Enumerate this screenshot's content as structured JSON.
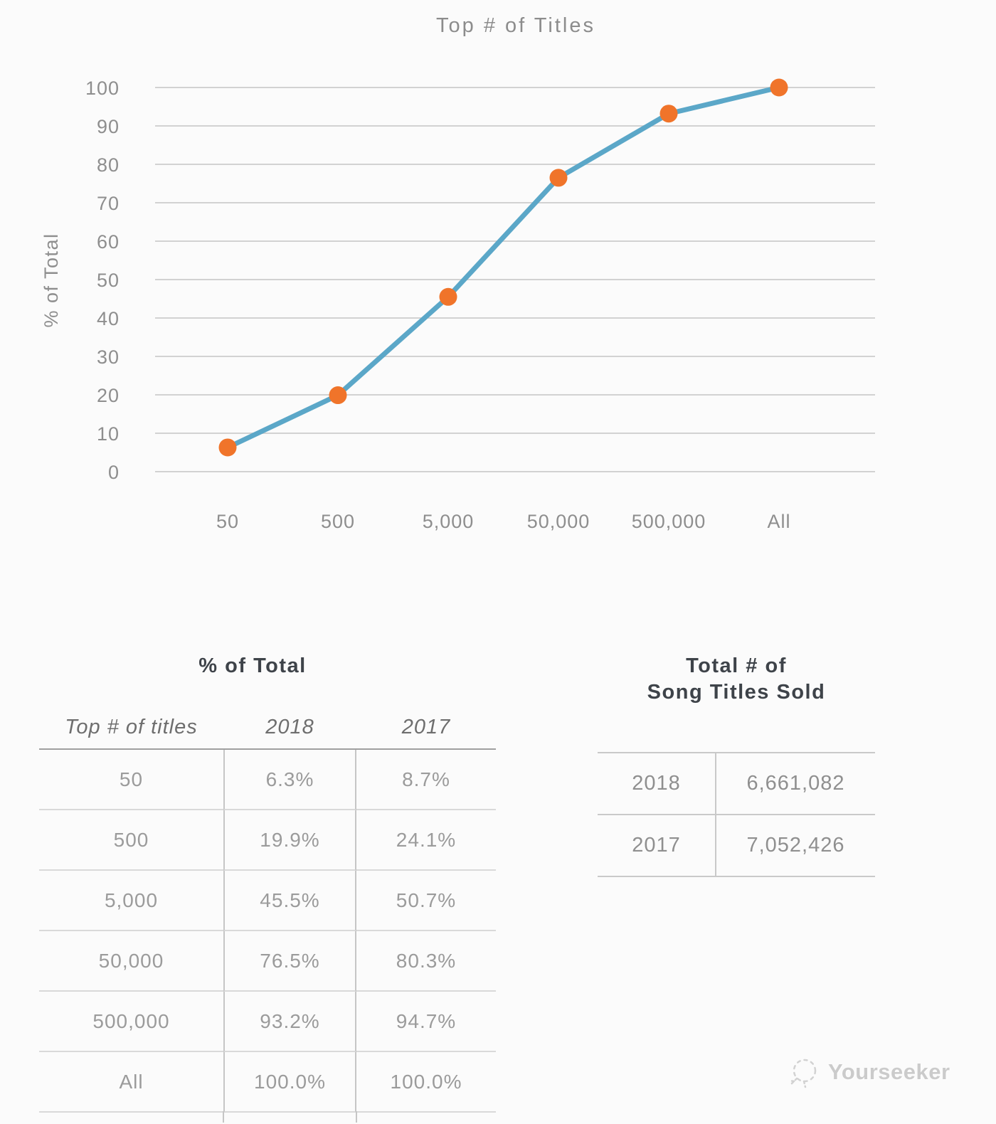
{
  "chart_data": {
    "type": "line",
    "title": "Top # of Titles",
    "xlabel": "",
    "ylabel": "% of Total",
    "categories": [
      "50",
      "500",
      "5,000",
      "50,000",
      "500,000",
      "All"
    ],
    "series": [
      {
        "name": "2018",
        "values": [
          6.3,
          19.9,
          45.5,
          76.5,
          93.2,
          100.0
        ]
      }
    ],
    "ylim": [
      0,
      100
    ],
    "yticks": [
      0,
      10,
      20,
      30,
      40,
      50,
      60,
      70,
      80,
      90,
      100
    ],
    "grid": true,
    "legend": "none",
    "line_color": "#5ba7c8",
    "point_color": "#f0742a",
    "grid_color": "#d2d2d2",
    "axis_text_color": "#8e8e8e"
  },
  "tables": {
    "percent_of_total": {
      "title": "% of Total",
      "columns": [
        "Top # of titles",
        "2018",
        "2017"
      ],
      "rows": [
        {
          "label": "50",
          "y2018": "6.3%",
          "y2017": "8.7%"
        },
        {
          "label": "500",
          "y2018": "19.9%",
          "y2017": "24.1%"
        },
        {
          "label": "5,000",
          "y2018": "45.5%",
          "y2017": "50.7%"
        },
        {
          "label": "50,000",
          "y2018": "76.5%",
          "y2017": "80.3%"
        },
        {
          "label": "500,000",
          "y2018": "93.2%",
          "y2017": "94.7%"
        },
        {
          "label": "All",
          "y2018": "100.0%",
          "y2017": "100.0%"
        }
      ]
    },
    "total_titles_sold": {
      "title_line1": "Total # of",
      "title_line2": "Song Titles Sold",
      "rows": [
        {
          "year": "2018",
          "value": "6,661,082"
        },
        {
          "year": "2017",
          "value": "7,052,426"
        }
      ]
    }
  },
  "watermark": {
    "brand": "Yourseeker"
  }
}
